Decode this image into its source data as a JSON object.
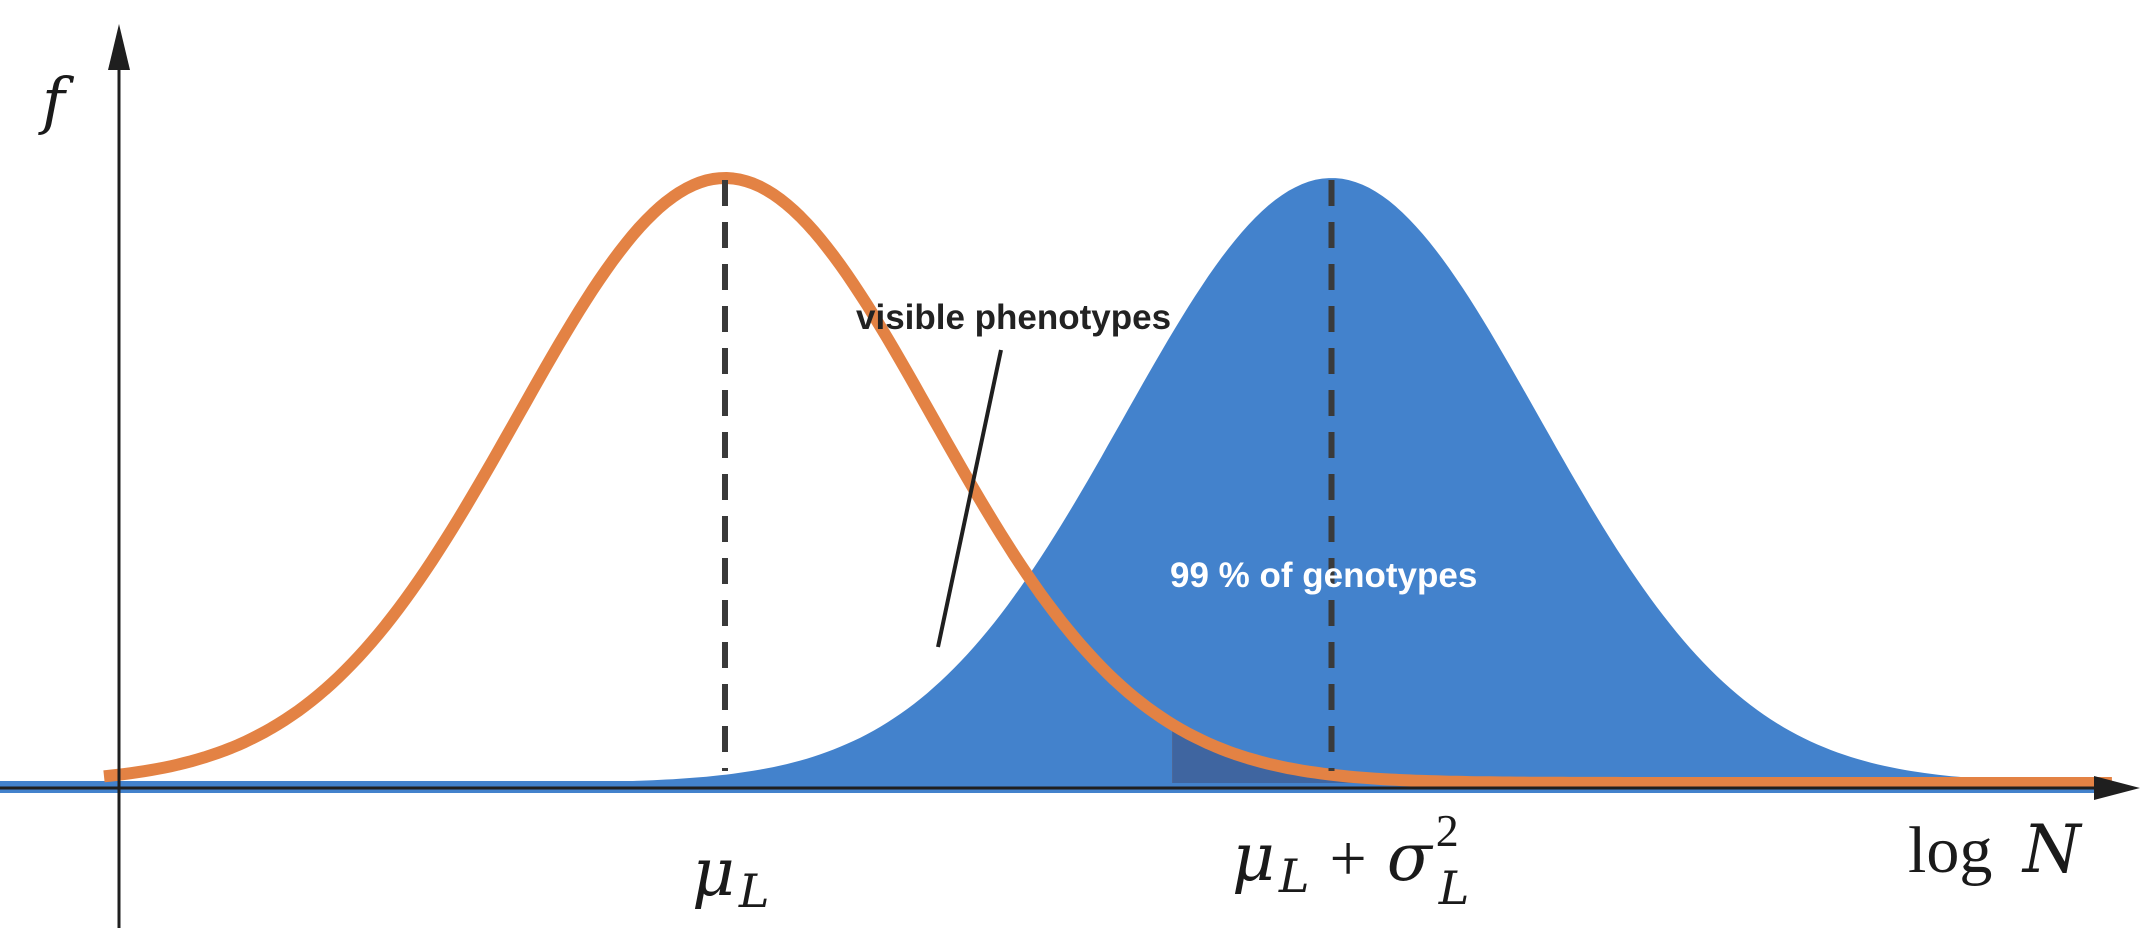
{
  "axes": {
    "y_label": "f",
    "x_label_log": "log",
    "x_label_var": "N"
  },
  "ticks": {
    "mu_symbol": "μ",
    "mu_sub": "L",
    "plus": "+",
    "sigma_symbol": "σ",
    "sigma_sup": "2",
    "sigma_sub": "L"
  },
  "annotations": {
    "visible_phenotypes": "visible phenotypes",
    "genotypes_share": "99 % of genotypes"
  },
  "colors": {
    "orange": "#e38244",
    "blue": "#4382cc",
    "overlap": "#3f65a0",
    "axis": "#1f1f1f",
    "dash": "#3a3a3a"
  },
  "chart_data": {
    "type": "area",
    "series": [
      {
        "name": "",
        "mean": 0,
        "sd": 1,
        "color": "#e38244",
        "style": "outline"
      },
      {
        "name": "",
        "mean": 2.93,
        "sd": 1,
        "color": "#4382cc",
        "style": "filled"
      }
    ],
    "shaded_tail": {
      "series": 0,
      "from": 2.16
    },
    "xlim": [
      -3,
      6.7
    ],
    "grid": false,
    "legend": "none"
  }
}
